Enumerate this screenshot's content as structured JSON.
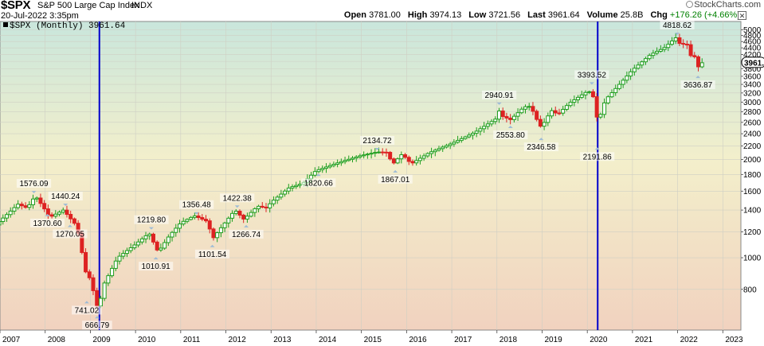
{
  "header": {
    "symbol": "$SPX",
    "name": "S&P 500 Large Cap Index",
    "exchange": "INDX",
    "date": "20-Jul-2022 3:35pm",
    "brand": "StockCharts.com",
    "brand_logo_icon": "circle-logo-icon",
    "close_icon": "close-icon"
  },
  "quote": {
    "open_label": "Open",
    "open": "3781.00",
    "high_label": "High",
    "high": "3974.13",
    "low_label": "Low",
    "low": "3721.56",
    "last_label": "Last",
    "last": "3961.64",
    "volume_label": "Volume",
    "volume": "25.8B",
    "change_label": "Chg",
    "change": "+176.26 (+4.66%)",
    "change_color": "#008000"
  },
  "legend": {
    "label": "$SPX (Monthly) 3961.64"
  },
  "chart_data": {
    "type": "candlestick",
    "title": "",
    "period": "Monthly",
    "y_scale": "log",
    "ylim": [
      600,
      5300
    ],
    "xlim": [
      2007.0,
      2023.4
    ],
    "colors": {
      "up": "#1e9e1e",
      "down": "#dd2222",
      "marker": "#0000cc",
      "last_badge": "#000000"
    },
    "x_ticks": [
      "2007",
      "2008",
      "2009",
      "2010",
      "2011",
      "2012",
      "2013",
      "2014",
      "2015",
      "2016",
      "2017",
      "2018",
      "2019",
      "2020",
      "2021",
      "2022",
      "2023"
    ],
    "y_ticks": [
      800,
      1000,
      1200,
      1400,
      1600,
      1800,
      2000,
      2200,
      2400,
      2600,
      2800,
      3000,
      3200,
      3400,
      3600,
      3800,
      4000,
      4200,
      4400,
      4600,
      4800,
      5000
    ],
    "last_value_label": "3961.",
    "vertical_markers": [
      2009.2,
      2020.23
    ],
    "waypoints": [
      [
        2006.9,
        1260
      ],
      [
        2007.4,
        1460
      ],
      [
        2007.6,
        1420
      ],
      [
        2007.78,
        1549
      ],
      [
        2008.0,
        1400
      ],
      [
        2008.1,
        1330
      ],
      [
        2008.4,
        1400
      ],
      [
        2008.7,
        1250
      ],
      [
        2008.9,
        900
      ],
      [
        2009.0,
        860
      ],
      [
        2009.17,
        690
      ],
      [
        2009.3,
        830
      ],
      [
        2009.6,
        1000
      ],
      [
        2010.0,
        1100
      ],
      [
        2010.3,
        1190
      ],
      [
        2010.5,
        1040
      ],
      [
        2010.75,
        1170
      ],
      [
        2011.0,
        1280
      ],
      [
        2011.3,
        1345
      ],
      [
        2011.6,
        1290
      ],
      [
        2011.7,
        1140
      ],
      [
        2011.9,
        1240
      ],
      [
        2012.2,
        1400
      ],
      [
        2012.4,
        1310
      ],
      [
        2012.7,
        1440
      ],
      [
        2012.9,
        1420
      ],
      [
        2013.0,
        1480
      ],
      [
        2013.4,
        1640
      ],
      [
        2013.7,
        1690
      ],
      [
        2013.99,
        1848
      ],
      [
        2014.5,
        1960
      ],
      [
        2014.99,
        2058
      ],
      [
        2015.35,
        2110
      ],
      [
        2015.6,
        2103
      ],
      [
        2015.67,
        1920
      ],
      [
        2015.9,
        2080
      ],
      [
        2016.1,
        1940
      ],
      [
        2016.5,
        2100
      ],
      [
        2016.99,
        2239
      ],
      [
        2017.5,
        2420
      ],
      [
        2017.99,
        2674
      ],
      [
        2018.05,
        2823
      ],
      [
        2018.12,
        2714
      ],
      [
        2018.3,
        2650
      ],
      [
        2018.6,
        2900
      ],
      [
        2018.75,
        2913
      ],
      [
        2018.85,
        2700
      ],
      [
        2018.98,
        2506
      ],
      [
        2019.2,
        2830
      ],
      [
        2019.35,
        2750
      ],
      [
        2019.6,
        2980
      ],
      [
        2019.99,
        3230
      ],
      [
        2020.1,
        3225
      ],
      [
        2020.17,
        2954
      ],
      [
        2020.23,
        2585
      ],
      [
        2020.4,
        3050
      ],
      [
        2020.6,
        3270
      ],
      [
        2020.99,
        3756
      ],
      [
        2021.4,
        4200
      ],
      [
        2021.7,
        4400
      ],
      [
        2021.99,
        4766
      ],
      [
        2022.05,
        4500
      ],
      [
        2022.2,
        4530
      ],
      [
        2022.3,
        4130
      ],
      [
        2022.4,
        4130
      ],
      [
        2022.47,
        3785
      ],
      [
        2022.54,
        3961
      ]
    ],
    "annotations": [
      {
        "x": 2007.75,
        "y": 1576.09,
        "label": "1576.09",
        "pos": "above"
      },
      {
        "x": 2008.05,
        "y": 1370.6,
        "label": "1370.60",
        "pos": "below"
      },
      {
        "x": 2008.45,
        "y": 1440.24,
        "label": "1440.24",
        "pos": "above"
      },
      {
        "x": 2008.55,
        "y": 1270.05,
        "label": "1270.05",
        "pos": "below"
      },
      {
        "x": 2008.92,
        "y": 741.02,
        "label": "741.02",
        "pos": "below"
      },
      {
        "x": 2009.15,
        "y": 666.79,
        "label": "666.79",
        "pos": "below"
      },
      {
        "x": 2010.35,
        "y": 1219.8,
        "label": "1219.80",
        "pos": "above"
      },
      {
        "x": 2010.45,
        "y": 1010.91,
        "label": "1010.91",
        "pos": "below"
      },
      {
        "x": 2011.35,
        "y": 1356.48,
        "label": "1356.48",
        "pos": "above"
      },
      {
        "x": 2011.7,
        "y": 1101.54,
        "label": "1101.54",
        "pos": "below"
      },
      {
        "x": 2012.25,
        "y": 1422.38,
        "label": "1422.38",
        "pos": "above"
      },
      {
        "x": 2012.45,
        "y": 1266.74,
        "label": "1266.74",
        "pos": "below"
      },
      {
        "x": 2014.05,
        "y": 1820.66,
        "label": "1820.66",
        "pos": "below"
      },
      {
        "x": 2015.35,
        "y": 2134.72,
        "label": "2134.72",
        "pos": "above"
      },
      {
        "x": 2015.75,
        "y": 1867.01,
        "label": "1867.01",
        "pos": "below"
      },
      {
        "x": 2018.05,
        "y": 2940.91,
        "label": "2940.91",
        "pos": "above"
      },
      {
        "x": 2018.3,
        "y": 2553.8,
        "label": "2553.80",
        "pos": "below"
      },
      {
        "x": 2018.98,
        "y": 2346.58,
        "label": "2346.58",
        "pos": "below"
      },
      {
        "x": 2020.1,
        "y": 3393.52,
        "label": "3393.52",
        "pos": "above"
      },
      {
        "x": 2020.22,
        "y": 2191.86,
        "label": "2191.86",
        "pos": "below"
      },
      {
        "x": 2021.99,
        "y": 4818.62,
        "label": "4818.62",
        "pos": "above"
      },
      {
        "x": 2022.45,
        "y": 3636.87,
        "label": "3636.87",
        "pos": "below"
      }
    ]
  }
}
